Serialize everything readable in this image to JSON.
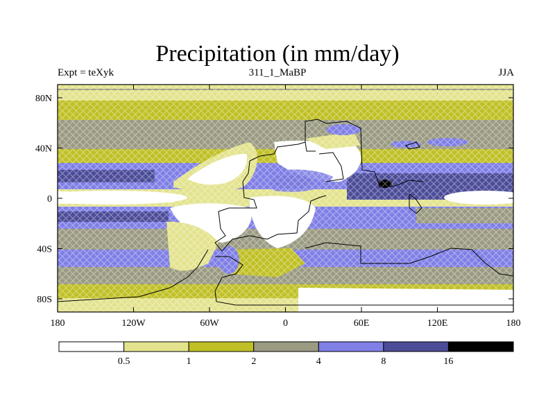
{
  "title": "Precipitation (in mm/day)",
  "left_label": "Expt = teXyk",
  "center_label": "311_1_MaBP",
  "right_label": "JJA",
  "lat_ticks": [
    {
      "label": "80N",
      "value": 80
    },
    {
      "label": "40N",
      "value": 40
    },
    {
      "label": "0",
      "value": 0
    },
    {
      "label": "40S",
      "value": -40
    },
    {
      "label": "80S",
      "value": -80
    }
  ],
  "lon_ticks": [
    {
      "label": "180",
      "value": -180
    },
    {
      "label": "120W",
      "value": -120
    },
    {
      "label": "60W",
      "value": -60
    },
    {
      "label": "0",
      "value": 0
    },
    {
      "label": "60E",
      "value": 60
    },
    {
      "label": "120E",
      "value": 120
    },
    {
      "label": "180",
      "value": 180
    }
  ],
  "colorbar": {
    "colors": [
      "#ffffff",
      "#e3e38e",
      "#c0c026",
      "#9b9b83",
      "#7f7fe6",
      "#4c4c99",
      "#000000"
    ],
    "labels": [
      "0.5",
      "1",
      "2",
      "4",
      "8",
      "16"
    ]
  }
}
